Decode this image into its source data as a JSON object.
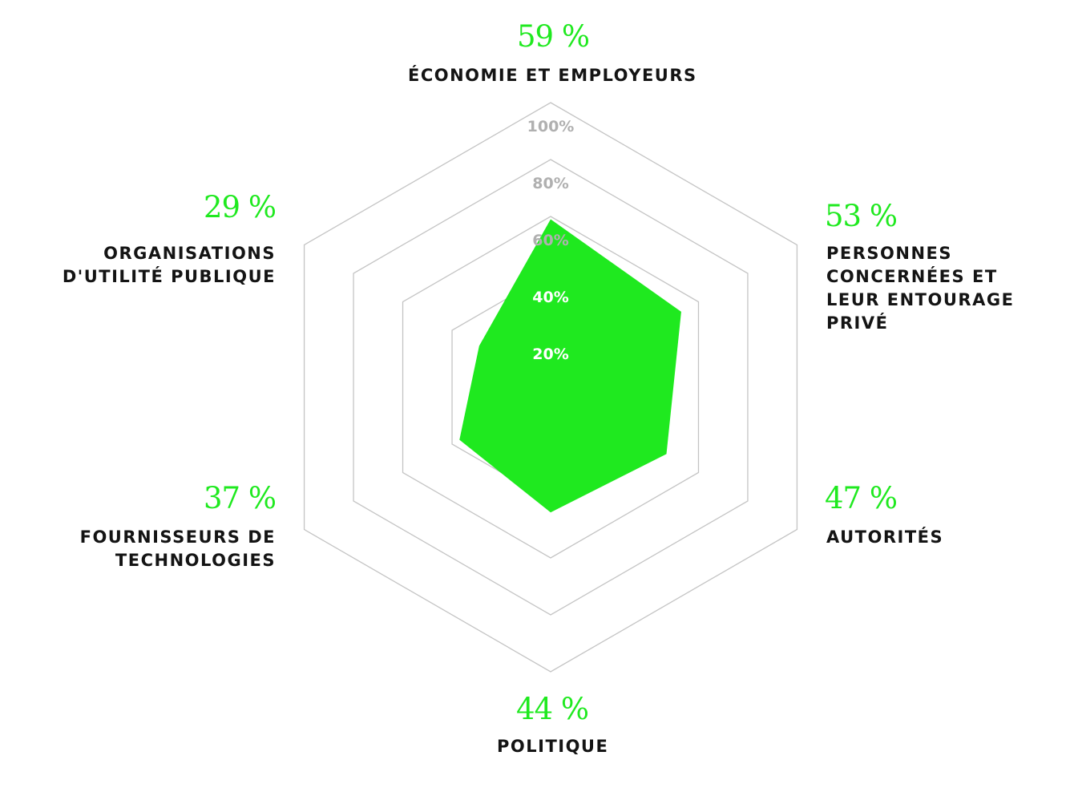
{
  "colors": {
    "accent": "#1fe91f",
    "grid": "#c4c4c4",
    "tick_outside": "#b0b0b0",
    "tick_inside": "#ffffff",
    "label": "#141414"
  },
  "chart_data": {
    "type": "radar",
    "range": [
      0,
      100
    ],
    "ticks": [
      "20%",
      "40%",
      "60%",
      "80%",
      "100%"
    ],
    "axes": [
      {
        "value": 59,
        "value_label": "59 %",
        "label": [
          "ÉCONOMIE ET EMPLOYEURS"
        ]
      },
      {
        "value": 53,
        "value_label": "53 %",
        "label": [
          "PERSONNES",
          "CONCERNÉES ET",
          "LEUR ENTOURAGE",
          "PRIVÉ"
        ]
      },
      {
        "value": 47,
        "value_label": "47 %",
        "label": [
          "AUTORITÉS"
        ]
      },
      {
        "value": 44,
        "value_label": "44 %",
        "label": [
          "POLITIQUE"
        ]
      },
      {
        "value": 37,
        "value_label": "37 %",
        "label": [
          "FOURNISSEURS DE",
          "TECHNOLOGIES"
        ]
      },
      {
        "value": 29,
        "value_label": "29 %",
        "label": [
          "ORGANISATIONS",
          "D'UTILITÉ PUBLIQUE"
        ]
      }
    ]
  }
}
